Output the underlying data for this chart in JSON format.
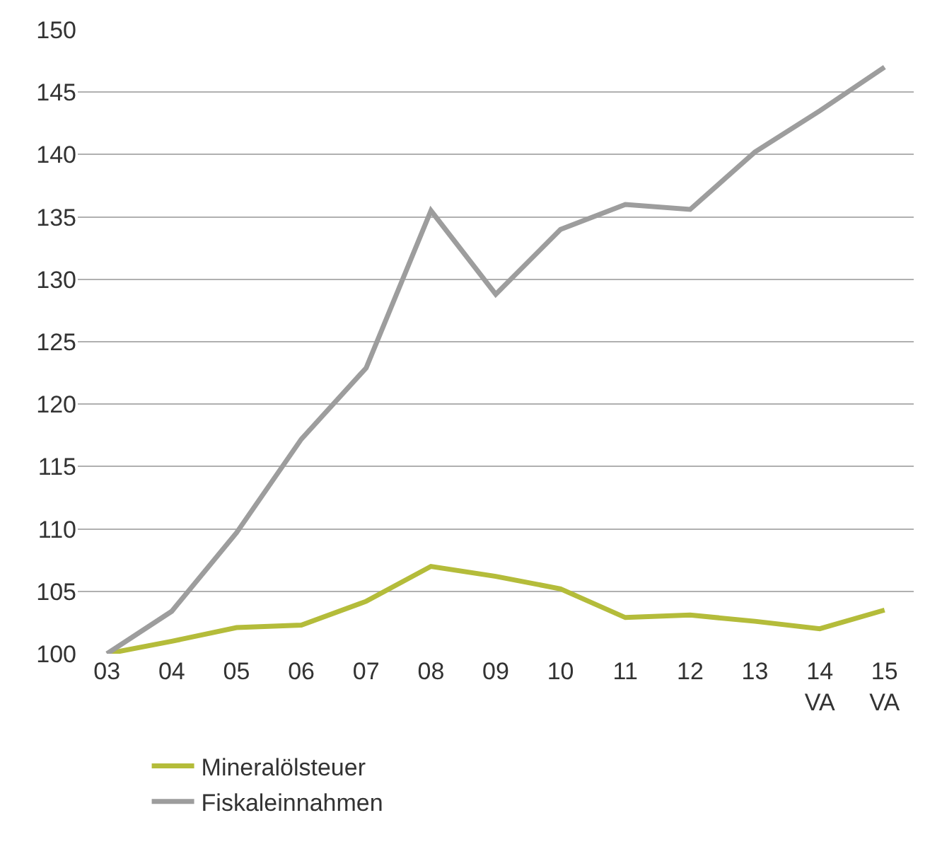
{
  "chart_data": {
    "type": "line",
    "categories": [
      "03",
      "04",
      "05",
      "06",
      "07",
      "08",
      "09",
      "10",
      "11",
      "12",
      "13",
      "14\nVA",
      "15\nVA"
    ],
    "series": [
      {
        "name": "Mineralölsteuer",
        "color": "#b4bc3a",
        "values": [
          100,
          101.0,
          102.1,
          102.3,
          104.2,
          107.0,
          106.2,
          105.2,
          102.9,
          103.1,
          102.6,
          102.0,
          103.5
        ]
      },
      {
        "name": "Fiskaleinnahmen",
        "color": "#9d9d9d",
        "values": [
          100,
          103.4,
          109.7,
          117.2,
          122.9,
          135.5,
          128.8,
          134.0,
          136.0,
          135.6,
          140.2,
          143.5,
          147.0
        ]
      }
    ],
    "ylim": [
      100,
      150
    ],
    "yticks": [
      100,
      105,
      110,
      115,
      120,
      125,
      130,
      135,
      140,
      145,
      150
    ],
    "grid": "y",
    "legend": "bottom left",
    "marker": "none",
    "line_style": "solid"
  }
}
